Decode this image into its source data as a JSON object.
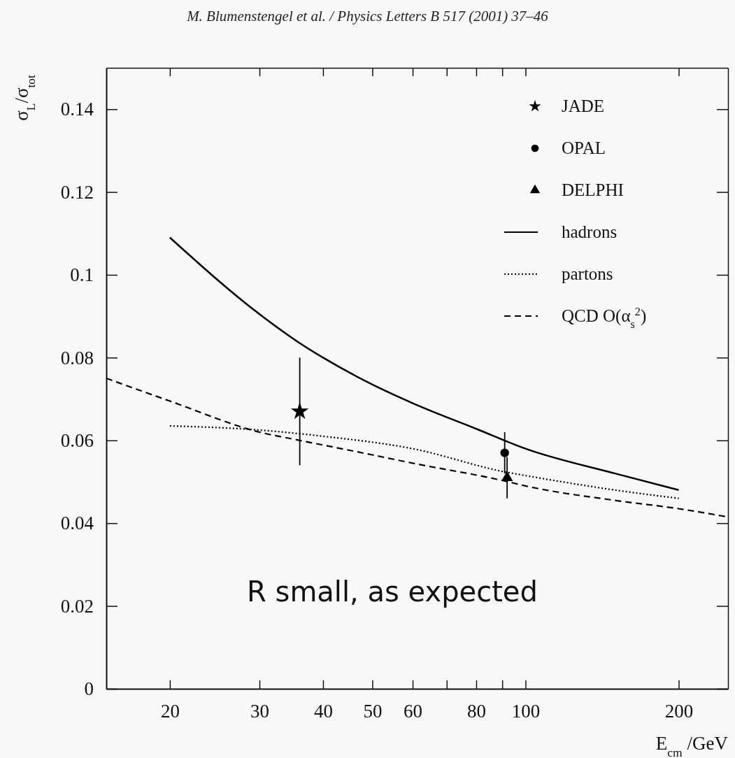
{
  "chart_data": {
    "type": "line",
    "title": "M. Blumenstengel et al. / Physics Letters B 517 (2001) 37–46",
    "xlabel": "E$_{cm}$ /GeV",
    "ylabel": "σ$_{L}$/σ$_{tot}$",
    "log": "x",
    "xlim": [
      15,
      250
    ],
    "ylim": [
      0,
      0.15
    ],
    "xticks": [
      20,
      30,
      40,
      50,
      60,
      {
        "value": 70,
        "label": null
      },
      80,
      {
        "value": 90,
        "label": null
      },
      100,
      200
    ],
    "yticks": [
      0,
      0.02,
      0.04,
      0.06,
      0.08,
      0.1,
      0.12,
      0.14
    ],
    "grid": false,
    "legend": "top right",
    "annotations": [
      "R small, as expected"
    ],
    "series": [
      {
        "name": "JADE",
        "type": "scatter",
        "marker": "star",
        "color": "#000000",
        "x": [
          36
        ],
        "values": [
          0.067
        ],
        "errors": [
          0.013
        ]
      },
      {
        "name": "OPAL",
        "type": "scatter",
        "marker": "circle",
        "color": "#000000",
        "x": [
          91
        ],
        "values": [
          0.057
        ],
        "errors": [
          0.005
        ]
      },
      {
        "name": "DELPHI",
        "type": "scatter",
        "marker": "triangle",
        "color": "#000000",
        "x": [
          92
        ],
        "values": [
          0.051
        ],
        "errors": [
          0.005
        ]
      },
      {
        "name": "hadrons",
        "line_style": "solid",
        "color": "#000000",
        "x": [
          20,
          30,
          36,
          40,
          50,
          60,
          80,
          100,
          150,
          200
        ],
        "values": [
          0.109,
          0.0905,
          0.0835,
          0.08,
          0.0735,
          0.069,
          0.0628,
          0.058,
          0.052,
          0.048
        ]
      },
      {
        "name": "partons",
        "line_style": "dotted",
        "color": "#000000",
        "x": [
          20,
          30,
          40,
          60,
          91,
          100,
          150,
          200
        ],
        "values": [
          0.0635,
          0.0625,
          0.061,
          0.058,
          0.0524,
          0.0515,
          0.048,
          0.046
        ]
      },
      {
        "name": "QCD O(α$_{s}$$^{2}$)",
        "line_style": "dashed",
        "color": "#000000",
        "x": [
          15,
          20,
          30,
          36,
          50,
          60,
          91,
          100,
          150,
          200,
          250
        ],
        "values": [
          0.075,
          0.0695,
          0.062,
          0.06,
          0.0565,
          0.0545,
          0.0502,
          0.049,
          0.0455,
          0.0435,
          0.0415
        ]
      }
    ]
  }
}
